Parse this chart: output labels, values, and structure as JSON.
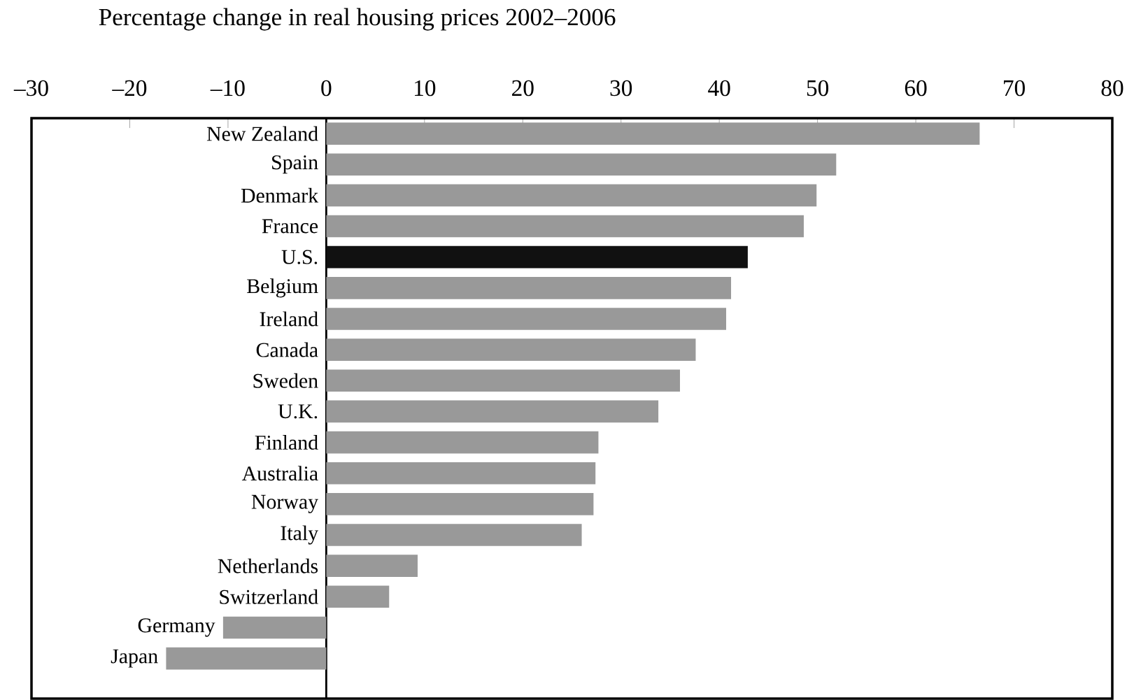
{
  "chart_data": {
    "type": "bar",
    "orientation": "horizontal",
    "title": "Percentage change in real housing prices 2002–2006",
    "categories": [
      "New Zealand",
      "Spain",
      "Denmark",
      "France",
      "U.S.",
      "Belgium",
      "Ireland",
      "Canada",
      "Sweden",
      "U.K.",
      "Finland",
      "Australia",
      "Norway",
      "Italy",
      "Netherlands",
      "Switzerland",
      "Germany",
      "Japan"
    ],
    "values": [
      66.5,
      51.9,
      49.9,
      48.6,
      42.9,
      41.2,
      40.7,
      37.6,
      36.0,
      33.8,
      27.7,
      27.4,
      27.2,
      26.0,
      9.3,
      6.4,
      -10.5,
      -16.3
    ],
    "colors": [
      "#999999",
      "#999999",
      "#999999",
      "#999999",
      "#111111",
      "#999999",
      "#999999",
      "#999999",
      "#999999",
      "#999999",
      "#999999",
      "#999999",
      "#999999",
      "#999999",
      "#999999",
      "#999999",
      "#999999",
      "#999999"
    ],
    "xlim": [
      -30,
      80
    ],
    "xticks": [
      {
        "value": -30,
        "label": "–30"
      },
      {
        "value": -20,
        "label": "–20"
      },
      {
        "value": -10,
        "label": "–10"
      },
      0,
      10,
      20,
      30,
      40,
      50,
      60,
      70,
      80
    ],
    "grid": false
  }
}
